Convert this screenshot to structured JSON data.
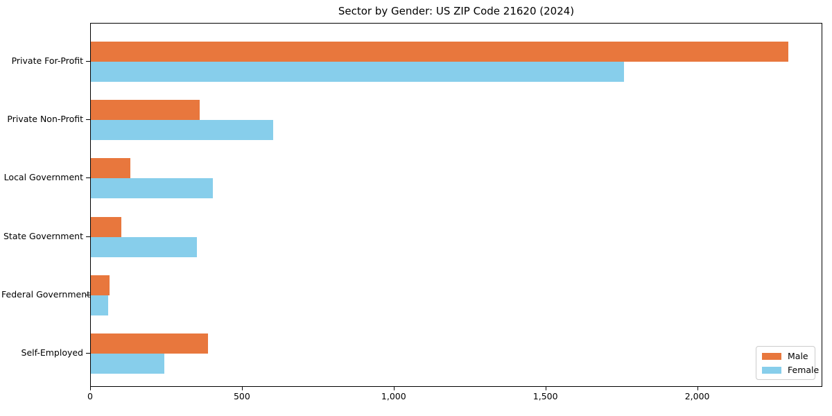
{
  "chart_data": {
    "type": "bar",
    "orientation": "horizontal",
    "title": "Sector by Gender: US ZIP Code 21620 (2024)",
    "categories": [
      "Private For-Profit",
      "Private Non-Profit",
      "Local Government",
      "State Government",
      "Federal Government",
      "Self-Employed"
    ],
    "series": [
      {
        "name": "Male",
        "color": "#E8773D",
        "values": [
          2297,
          358,
          130,
          100,
          61,
          386
        ]
      },
      {
        "name": "Female",
        "color": "#87CEEB",
        "values": [
          1756,
          600,
          402,
          349,
          56,
          242
        ]
      }
    ],
    "xlabel": "",
    "ylabel": "",
    "xlim": [
      0,
      2412
    ],
    "xticks": [
      0,
      500,
      1000,
      1500,
      2000
    ],
    "xtick_labels": [
      "0",
      "500",
      "1,000",
      "1,500",
      "2,000"
    ],
    "grid": false,
    "legend_position": "lower-right",
    "colors": {
      "spine": "#000000",
      "text": "#000000",
      "background": "#ffffff",
      "legend_border": "#cccccc"
    }
  }
}
